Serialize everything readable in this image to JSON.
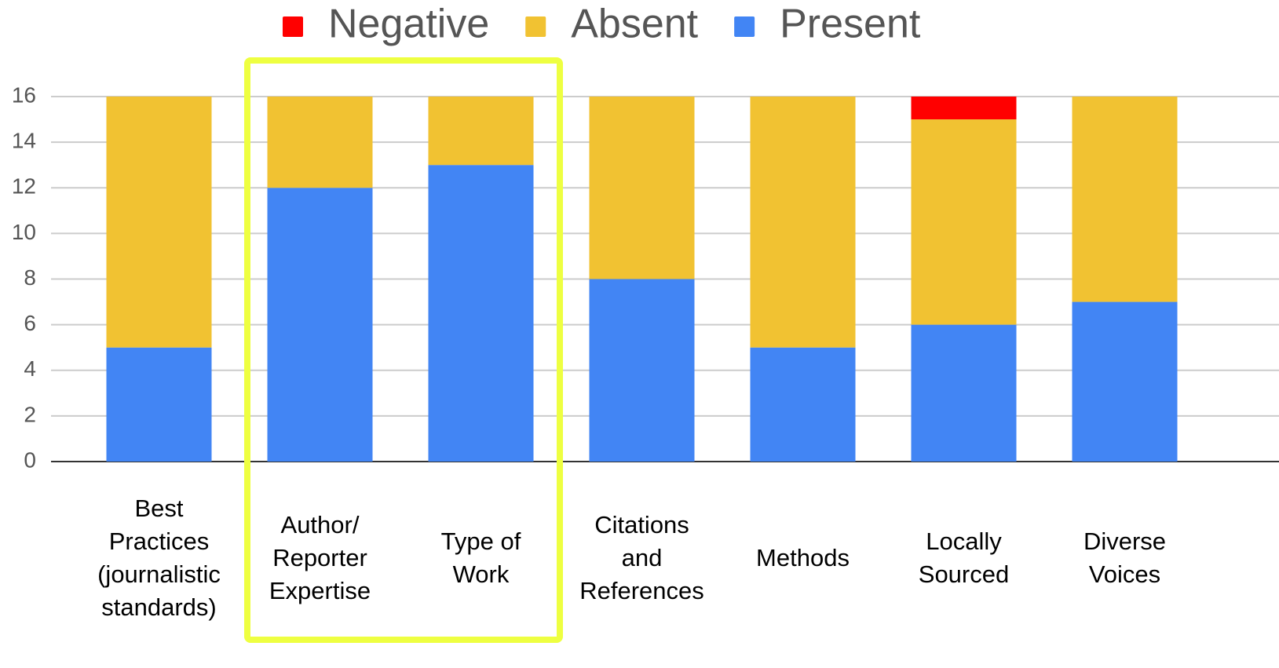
{
  "chart_data": {
    "type": "stacked_bar",
    "categories": [
      "Best\nPractices\n(journalistic\nstandards)",
      "Author/\nReporter\nExpertise",
      "Type of\nWork",
      "Citations\nand\nReferences",
      "Methods",
      "Locally\nSourced",
      "Diverse\nVoices"
    ],
    "series": [
      {
        "name": "Present",
        "color": "#4285f4",
        "values": [
          5,
          12,
          13,
          8,
          5,
          6,
          7
        ]
      },
      {
        "name": "Absent",
        "color": "#f1c232",
        "values": [
          11,
          4,
          3,
          8,
          11,
          9,
          9
        ]
      },
      {
        "name": "Negative",
        "color": "#ff0000",
        "values": [
          0,
          0,
          0,
          0,
          0,
          1,
          0
        ]
      }
    ],
    "ylim": [
      0,
      16
    ],
    "yticks": [
      0,
      2,
      4,
      6,
      8,
      10,
      12,
      14,
      16
    ],
    "grid": true,
    "legend": "top"
  }
}
